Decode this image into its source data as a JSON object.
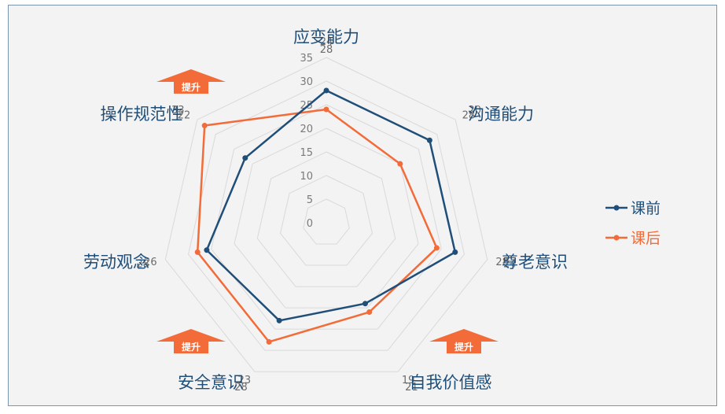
{
  "chart_data": {
    "type": "radar",
    "axes": [
      "应变能力",
      "沟通能力",
      "尊老意识",
      "自我价值感",
      "安全意识",
      "劳动观念",
      "操作规范性"
    ],
    "rticks": [
      "0",
      "5",
      "10",
      "15",
      "20",
      "25",
      "30",
      "35"
    ],
    "rlim": [
      0,
      35
    ],
    "grid": true,
    "legend_position": "right",
    "series": [
      {
        "name": "课前",
        "color": "#1f4e79",
        "values": [
          28,
          28,
          28,
          19,
          23,
          26,
          22
        ]
      },
      {
        "name": "课后",
        "color": "#f26b38",
        "values": [
          24,
          20,
          24,
          21,
          28,
          28,
          33
        ]
      }
    ],
    "annotations": [
      {
        "text": "提升",
        "axis": "操作规范性"
      },
      {
        "text": "提升",
        "axis": "安全意识"
      },
      {
        "text": "提升",
        "axis": "自我价值感"
      }
    ]
  }
}
